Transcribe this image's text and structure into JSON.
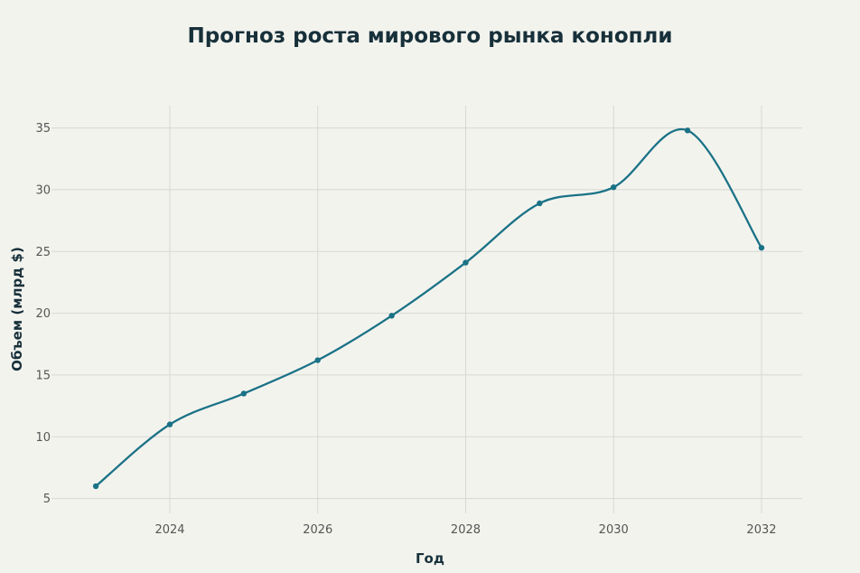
{
  "chart_data": {
    "type": "line",
    "title": "Прогноз роста мирового рынка конопли",
    "xlabel": "Год",
    "ylabel": "Объем (млрд $)",
    "x": [
      2023,
      2024,
      2025,
      2026,
      2027,
      2028,
      2029,
      2030,
      2031,
      2032
    ],
    "series": [
      {
        "values": [
          6.0,
          11.0,
          13.5,
          16.2,
          19.8,
          24.1,
          28.9,
          30.2,
          34.8,
          25.3
        ],
        "color": "#1a7286"
      }
    ],
    "xlim": [
      2022.4,
      2032.55
    ],
    "ylim": [
      3.8,
      36.8
    ],
    "xticks": [
      2024,
      2026,
      2028,
      2030,
      2032
    ],
    "yticks": [
      5,
      10,
      15,
      20,
      25,
      30,
      35
    ],
    "grid": true,
    "line_shape": "smooth"
  }
}
